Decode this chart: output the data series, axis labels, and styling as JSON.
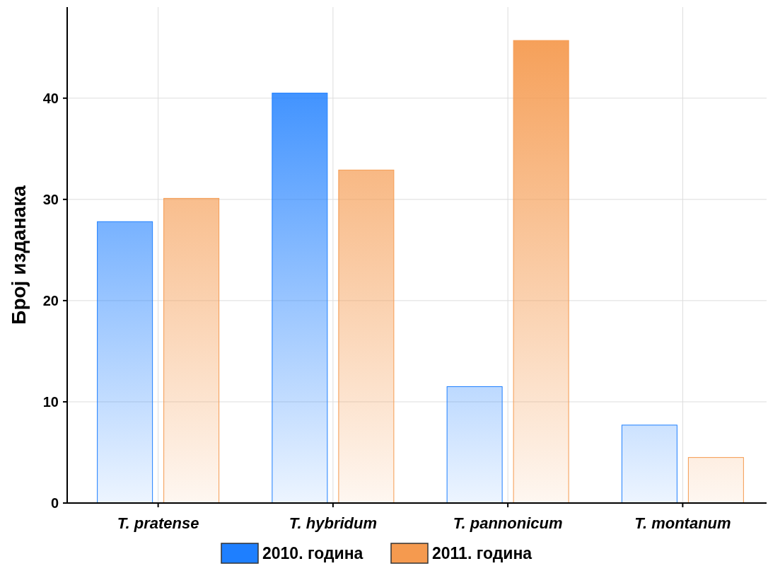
{
  "chart_data": {
    "type": "bar",
    "ylabel": "Број изданака",
    "categories": [
      "T. pratense",
      "T. hybridum",
      "T. pannonicum",
      "T. montanum"
    ],
    "series": [
      {
        "name": "2010. година",
        "color": "#1e7fff",
        "values": [
          27.8,
          40.5,
          11.5,
          7.7
        ]
      },
      {
        "name": "2011. година",
        "color": "#f59a4f",
        "values": [
          30.1,
          32.9,
          45.7,
          4.5
        ]
      }
    ],
    "ylim": [
      0,
      49
    ],
    "yticks": [
      0,
      10,
      20,
      30,
      40
    ],
    "grid": true,
    "legend": "bottom"
  }
}
